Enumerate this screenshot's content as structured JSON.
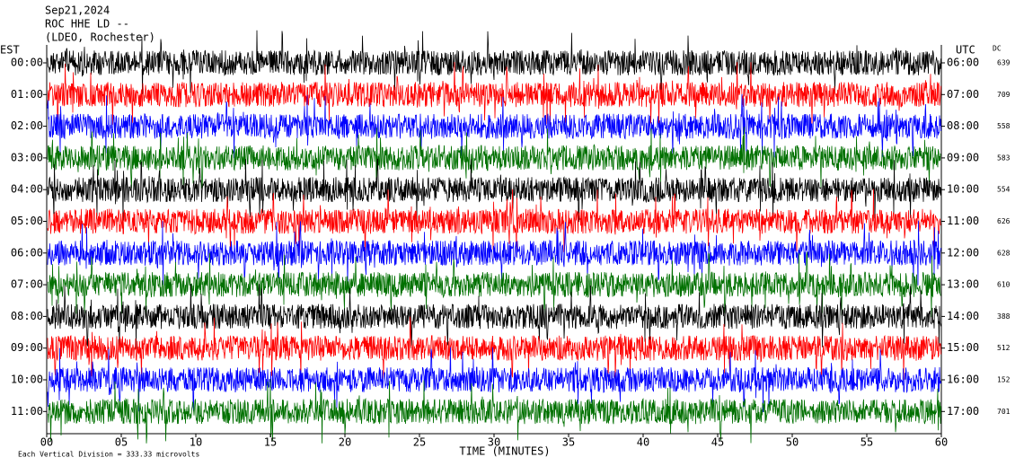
{
  "chart_data": {
    "type": "helicorder",
    "title_lines": [
      "Sep21,2024",
      "ROC HHE LD --",
      "(LDEO, Rochester)"
    ],
    "left_axis_label": "EST",
    "right_axis_label": "UTC",
    "dc_label": "DC",
    "left_labels": [
      "00:00",
      "01:00",
      "02:00",
      "03:00",
      "04:00",
      "05:00",
      "06:00",
      "07:00",
      "08:00",
      "09:00",
      "10:00",
      "11:00"
    ],
    "right_labels": [
      "06:00",
      "07:00",
      "08:00",
      "09:00",
      "10:00",
      "11:00",
      "12:00",
      "13:00",
      "14:00",
      "15:00",
      "16:00",
      "17:00"
    ],
    "dc_values": [
      639,
      709,
      558,
      583,
      554,
      626,
      628,
      610,
      388,
      512,
      152,
      701
    ],
    "trace_colors": [
      "#000000",
      "#ff0000",
      "#0000ff",
      "#007000"
    ],
    "xlim": [
      0,
      60
    ],
    "xticks": [
      {
        "value": 0,
        "label": "00"
      },
      {
        "value": 5,
        "label": "05"
      },
      10,
      15,
      20,
      25,
      30,
      35,
      40,
      45,
      50,
      55,
      60
    ],
    "xlabel": "TIME (MINUTES)",
    "footnote": "Each Vertical Division =  333.33 microvolts"
  }
}
